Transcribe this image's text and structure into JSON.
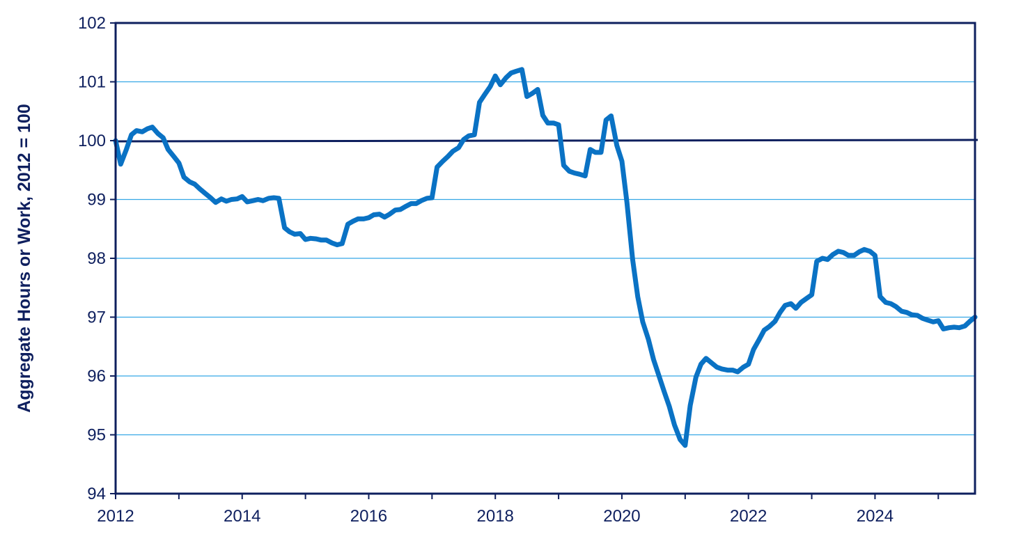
{
  "chart_data": {
    "type": "line",
    "title": "",
    "xlabel": "",
    "ylabel": "Aggregate Hours or Work, 2012 = 100",
    "xlim": [
      2012,
      2025.58
    ],
    "ylim": [
      94,
      102
    ],
    "x_ticks": [
      "2012",
      "2014",
      "2016",
      "2018",
      "2020",
      "2022",
      "2024"
    ],
    "y_ticks": [
      "94",
      "95",
      "96",
      "97",
      "98",
      "99",
      "100",
      "101",
      "102"
    ],
    "grid": true,
    "reference_line": 100,
    "colors": {
      "series": "#0a72c4",
      "reference": "#0e1f5e",
      "grid": "#35a7e6",
      "frame": "#0e1f5e",
      "text": "#0e1f5e"
    },
    "series": [
      {
        "x": [
          2012.0,
          2012.08,
          2012.17,
          2012.25,
          2012.33,
          2012.42,
          2012.5,
          2012.58,
          2012.67,
          2012.75,
          2012.83,
          2012.92,
          2013.0,
          2013.08,
          2013.17,
          2013.25,
          2013.33,
          2013.42,
          2013.5,
          2013.58,
          2013.67,
          2013.75,
          2013.83,
          2013.92,
          2014.0,
          2014.08,
          2014.17,
          2014.25,
          2014.33,
          2014.42,
          2014.5,
          2014.58,
          2014.67,
          2014.75,
          2014.83,
          2014.92,
          2015.0,
          2015.08,
          2015.17,
          2015.25,
          2015.33,
          2015.42,
          2015.5,
          2015.58,
          2015.67,
          2015.75,
          2015.83,
          2015.92,
          2016.0,
          2016.08,
          2016.17,
          2016.25,
          2016.33,
          2016.42,
          2016.5,
          2016.58,
          2016.67,
          2016.75,
          2016.83,
          2016.92,
          2017.0,
          2017.08,
          2017.17,
          2017.25,
          2017.33,
          2017.42,
          2017.5,
          2017.58,
          2017.67,
          2017.75,
          2017.83,
          2017.92,
          2018.0,
          2018.08,
          2018.17,
          2018.25,
          2018.33,
          2018.42,
          2018.5,
          2018.58,
          2018.67,
          2018.75,
          2018.83,
          2018.92,
          2019.0,
          2019.08,
          2019.17,
          2019.25,
          2019.33,
          2019.42,
          2019.5,
          2019.58,
          2019.67,
          2019.75,
          2019.83,
          2019.92,
          2020.0,
          2020.08,
          2020.17,
          2020.25,
          2020.33,
          2020.42,
          2020.5,
          2020.58,
          2020.67,
          2020.75,
          2020.83,
          2020.92,
          2021.0,
          2021.08,
          2021.17,
          2021.25,
          2021.33,
          2021.42,
          2021.5,
          2021.58,
          2021.67,
          2021.75,
          2021.83,
          2021.92,
          2022.0,
          2022.08,
          2022.17,
          2022.25,
          2022.33,
          2022.42,
          2022.5,
          2022.58,
          2022.67,
          2022.75,
          2022.83,
          2022.92,
          2023.0,
          2023.08,
          2023.17,
          2023.25,
          2023.33,
          2023.42,
          2023.5,
          2023.58,
          2023.67,
          2023.75,
          2023.83,
          2023.92,
          2024.0,
          2024.08,
          2024.17,
          2024.25,
          2024.33,
          2024.42,
          2024.5,
          2024.58,
          2024.67,
          2024.75,
          2024.83,
          2024.92,
          2025.0,
          2025.08,
          2025.17,
          2025.25,
          2025.33,
          2025.42,
          2025.5,
          2025.58
        ],
        "values": [
          100.0,
          99.6,
          99.85,
          100.1,
          100.17,
          100.15,
          100.2,
          100.23,
          100.12,
          100.05,
          99.85,
          99.73,
          99.62,
          99.38,
          99.3,
          99.26,
          99.18,
          99.1,
          99.03,
          98.95,
          99.01,
          98.97,
          99.0,
          99.01,
          99.05,
          98.96,
          98.98,
          99.0,
          98.98,
          99.02,
          99.03,
          99.02,
          98.52,
          98.45,
          98.41,
          98.42,
          98.32,
          98.34,
          98.33,
          98.31,
          98.31,
          98.26,
          98.23,
          98.25,
          98.58,
          98.63,
          98.67,
          98.67,
          98.69,
          98.74,
          98.75,
          98.7,
          98.75,
          98.82,
          98.83,
          98.88,
          98.93,
          98.93,
          98.98,
          99.02,
          99.03,
          99.55,
          99.65,
          99.73,
          99.82,
          99.88,
          100.02,
          100.08,
          100.1,
          100.65,
          100.78,
          100.92,
          101.1,
          100.95,
          101.07,
          101.15,
          101.18,
          101.21,
          100.75,
          100.8,
          100.87,
          100.43,
          100.3,
          100.3,
          100.27,
          99.58,
          99.48,
          99.45,
          99.43,
          99.4,
          99.85,
          99.8,
          99.8,
          100.35,
          100.42,
          99.92,
          99.65,
          98.95,
          97.98,
          97.35,
          96.92,
          96.62,
          96.28,
          96.02,
          95.73,
          95.48,
          95.17,
          94.92,
          94.82,
          95.5,
          95.98,
          96.2,
          96.3,
          96.22,
          96.15,
          96.12,
          96.1,
          96.1,
          96.07,
          96.15,
          96.2,
          96.45,
          96.62,
          96.78,
          96.84,
          96.93,
          97.08,
          97.2,
          97.23,
          97.15,
          97.25,
          97.32,
          97.38,
          97.95,
          98.0,
          97.98,
          98.06,
          98.12,
          98.1,
          98.05,
          98.05,
          98.11,
          98.15,
          98.12,
          98.05,
          97.35,
          97.25,
          97.23,
          97.18,
          97.1,
          97.08,
          97.04,
          97.03,
          96.98,
          96.95,
          96.92,
          96.94,
          96.8,
          96.82,
          96.83,
          96.82,
          96.85,
          96.93,
          97.0
        ]
      }
    ]
  }
}
